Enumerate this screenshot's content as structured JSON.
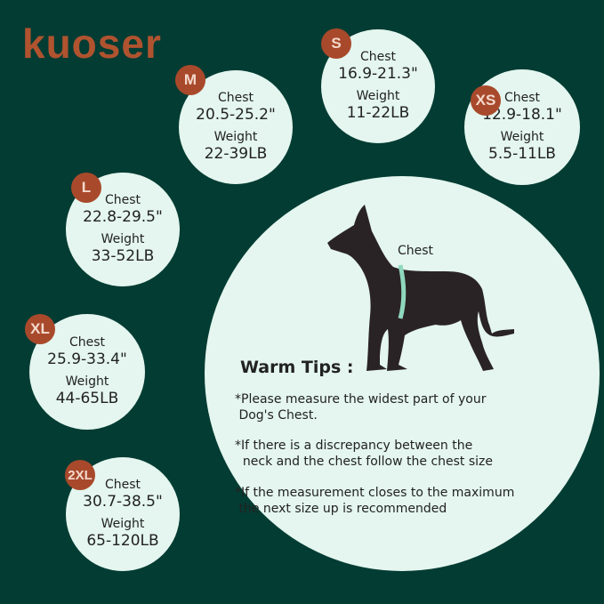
{
  "brand": {
    "logo": "kuoser"
  },
  "colors": {
    "background": "#033c33",
    "circle": "#e4f6ef",
    "badge": "#a9492b",
    "dog": "#2a2325",
    "tape": "#8fd8be"
  },
  "sizes": [
    {
      "size": "S",
      "chest_label": "Chest",
      "chest": "16.9-21.3\"",
      "weight_label": "Weight",
      "weight": "11-22LB"
    },
    {
      "size": "M",
      "chest_label": "Chest",
      "chest": "20.5-25.2\"",
      "weight_label": "Weight",
      "weight": "22-39LB"
    },
    {
      "size": "XS",
      "chest_label": "Chest",
      "chest": "12.9-18.1\"",
      "weight_label": "Weight",
      "weight": "5.5-11LB"
    },
    {
      "size": "L",
      "chest_label": "Chest",
      "chest": "22.8-29.5\"",
      "weight_label": "Weight",
      "weight": "33-52LB"
    },
    {
      "size": "XL",
      "chest_label": "Chest",
      "chest": "25.9-33.4\"",
      "weight_label": "Weight",
      "weight": "44-65LB"
    },
    {
      "size": "2XL",
      "chest_label": "Chest",
      "chest": "30.7-38.5\"",
      "weight_label": "Weight",
      "weight": "65-120LB"
    }
  ],
  "diagram": {
    "chest_label": "Chest",
    "dog_icon": "dog-silhouette"
  },
  "tips": {
    "title": "Warm Tips :",
    "items": [
      "*Please measure the widest part of your\n Dog's Chest.",
      "*If there is a discrepancy between the\n  neck and the chest follow the chest size",
      "*If the measurement closes to the maximum\n the next size up is recommended"
    ]
  }
}
